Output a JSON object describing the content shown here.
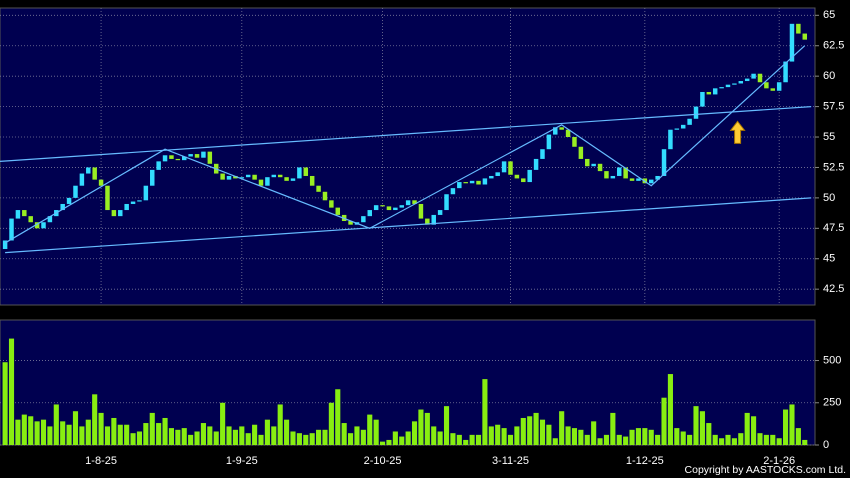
{
  "chart_data": [
    {
      "type": "candlestick",
      "categories": [
        null,
        null,
        null,
        null,
        null,
        null,
        null,
        null,
        null,
        null,
        null,
        null,
        null,
        null,
        null,
        "1-8-25",
        null,
        null,
        null,
        null,
        null,
        null,
        null,
        null,
        null,
        null,
        null,
        null,
        null,
        null,
        null,
        null,
        null,
        null,
        null,
        null,
        null,
        "1-9-25",
        null,
        null,
        null,
        null,
        null,
        null,
        null,
        null,
        null,
        null,
        null,
        null,
        null,
        null,
        null,
        null,
        null,
        null,
        null,
        null,
        null,
        "2-10-25",
        null,
        null,
        null,
        null,
        null,
        null,
        null,
        null,
        null,
        null,
        null,
        null,
        null,
        null,
        null,
        null,
        null,
        null,
        null,
        "3-11-25",
        null,
        null,
        null,
        null,
        null,
        null,
        null,
        null,
        null,
        null,
        null,
        null,
        null,
        null,
        null,
        null,
        null,
        null,
        null,
        null,
        "1-12-25",
        null,
        null,
        null,
        null,
        null,
        null,
        null,
        null,
        null,
        null,
        null,
        null,
        null,
        null,
        null,
        null,
        null,
        null,
        null,
        null,
        "2-1-26",
        null,
        null,
        null,
        null
      ],
      "open": [
        45.8,
        46.5,
        48.3,
        49,
        48.5,
        48,
        47.5,
        48,
        48.5,
        49,
        49.5,
        50,
        51,
        52,
        52.5,
        51.5,
        51,
        49,
        48.5,
        49,
        49.5,
        49.7,
        49.8,
        51,
        52.3,
        53,
        53.5,
        53.2,
        53.1,
        53.4,
        53.6,
        53.3,
        53.8,
        52.8,
        52,
        51.5,
        51.8,
        51.6,
        51.7,
        51.9,
        51.5,
        51,
        51.7,
        51.9,
        51.7,
        51.4,
        51.6,
        52.5,
        51.8,
        51,
        50.5,
        49.8,
        49.2,
        48.6,
        48.1,
        47.8,
        48,
        48.5,
        49,
        49.4,
        49.3,
        49,
        49.2,
        49.4,
        49.8,
        49.5,
        48.3,
        47.8,
        48.6,
        49,
        50.3,
        50.8,
        51.3,
        51.2,
        51.4,
        51.1,
        51.6,
        51.8,
        52.1,
        53,
        51.9,
        51.6,
        51.3,
        52.3,
        53.2,
        54,
        55.2,
        55.8,
        55.6,
        55,
        54.2,
        53.2,
        52.6,
        52.8,
        52.2,
        51.6,
        51.8,
        52.5,
        51.6,
        51.4,
        51.6,
        51.2,
        51.5,
        51.8,
        54,
        55.6,
        55.7,
        56,
        56.5,
        57.5,
        58.7,
        58.5,
        59,
        59.1,
        59.3,
        59.4,
        59.6,
        59.8,
        60.2,
        59.5,
        59,
        58.8,
        59.5,
        61.2,
        64.3,
        63.5
      ],
      "close": [
        46.5,
        48.3,
        49,
        48.5,
        48,
        47.5,
        48,
        48.5,
        49,
        49.5,
        50,
        51,
        52,
        52.5,
        51.5,
        51,
        49,
        48.5,
        49,
        49.5,
        49.7,
        49.8,
        51,
        52.3,
        53,
        53.5,
        53.2,
        53.1,
        53.4,
        53.6,
        53.3,
        53.8,
        52.8,
        52,
        51.5,
        51.8,
        51.6,
        51.7,
        51.9,
        51.5,
        51,
        51.7,
        51.9,
        51.7,
        51.4,
        51.6,
        52.5,
        51.8,
        51,
        50.5,
        49.8,
        49.2,
        48.6,
        48.1,
        47.8,
        48,
        48.5,
        49,
        49.4,
        49.3,
        49,
        49.2,
        49.4,
        49.8,
        49.5,
        48.3,
        47.8,
        48.6,
        49,
        50.3,
        50.8,
        51.3,
        51.2,
        51.4,
        51.1,
        51.6,
        51.8,
        52.1,
        53,
        51.9,
        51.6,
        51.3,
        52.3,
        53.2,
        54,
        55.2,
        55.8,
        55.6,
        55,
        54.2,
        53.2,
        52.6,
        52.8,
        52.2,
        51.6,
        51.8,
        52.5,
        51.6,
        51.4,
        51.6,
        51.2,
        51.5,
        51.8,
        54,
        55.6,
        55.7,
        56,
        56.5,
        57.5,
        58.7,
        58.5,
        59,
        59.1,
        59.3,
        59.4,
        59.6,
        59.8,
        60.2,
        59.5,
        59,
        58.8,
        59.5,
        61.2,
        64.3,
        63.5,
        63
      ],
      "up_color": "#33ddff",
      "down_color": "#99ee22",
      "xlim": [
        -0.8,
        126.6
      ],
      "ylim": [
        41.2,
        65.6
      ],
      "yticks": [
        42.5,
        45,
        47.5,
        50,
        52.5,
        55,
        57.5,
        60,
        62.5,
        65
      ],
      "grid": true,
      "trendlines": [
        {
          "x": [
            -0.8,
            126
          ],
          "y": [
            53,
            57.5
          ]
        },
        {
          "x": [
            0,
            126
          ],
          "y": [
            45.5,
            50
          ]
        },
        {
          "x": [
            0,
            25,
            57,
            87,
            101,
            125
          ],
          "y": [
            46.3,
            54,
            47.5,
            56,
            51,
            62.5
          ]
        }
      ],
      "trend_color": "#66bbff",
      "annotations": [
        {
          "x": 114.5,
          "y": 55.3,
          "color": "#ffcc33"
        }
      ]
    },
    {
      "type": "bar",
      "values": [
        490,
        630,
        150,
        180,
        170,
        140,
        150,
        110,
        240,
        140,
        120,
        200,
        110,
        150,
        300,
        190,
        110,
        160,
        120,
        120,
        70,
        80,
        130,
        190,
        130,
        160,
        100,
        90,
        100,
        60,
        80,
        130,
        110,
        80,
        250,
        110,
        90,
        110,
        70,
        120,
        60,
        150,
        110,
        240,
        150,
        80,
        70,
        60,
        70,
        90,
        90,
        250,
        330,
        130,
        70,
        110,
        90,
        180,
        150,
        20,
        30,
        80,
        50,
        80,
        140,
        210,
        190,
        110,
        80,
        230,
        70,
        60,
        30,
        60,
        60,
        390,
        110,
        120,
        100,
        60,
        110,
        160,
        170,
        190,
        150,
        120,
        40,
        200,
        110,
        100,
        90,
        60,
        140,
        40,
        60,
        190,
        60,
        50,
        90,
        100,
        100,
        90,
        60,
        280,
        420,
        100,
        80,
        60,
        230,
        200,
        130,
        60,
        40,
        60,
        40,
        70,
        190,
        170,
        70,
        60,
        60,
        40,
        210,
        240,
        100,
        30
      ],
      "color": "#88ee11",
      "ylim": [
        0,
        740
      ],
      "yticks": [
        0,
        250,
        500
      ],
      "grid": true,
      "source": "Copyright by AASTOCKS.com Ltd."
    }
  ]
}
